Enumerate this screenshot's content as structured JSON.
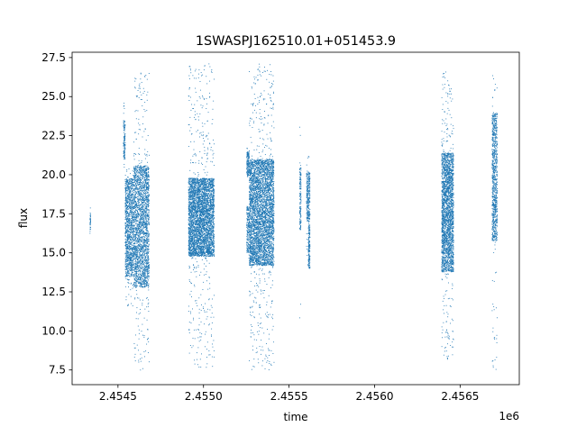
{
  "chart_data": {
    "type": "scatter",
    "title": "1SWASPJ162510.01+051453.9",
    "xlabel": "time",
    "ylabel": "flux",
    "x_offset_label": "1e6",
    "xlim": [
      2454232,
      2456846
    ],
    "ylim": [
      6.56,
      27.84
    ],
    "xticks": [
      {
        "value": 2454500,
        "label": "2.4545"
      },
      {
        "value": 2455000,
        "label": "2.4550"
      },
      {
        "value": 2455500,
        "label": "2.4555"
      },
      {
        "value": 2456000,
        "label": "2.4560"
      },
      {
        "value": 2456500,
        "label": "2.4565"
      }
    ],
    "yticks": [
      {
        "value": 7.5,
        "label": "7.5"
      },
      {
        "value": 10.0,
        "label": "10.0"
      },
      {
        "value": 12.5,
        "label": "12.5"
      },
      {
        "value": 15.0,
        "label": "15.0"
      },
      {
        "value": 17.5,
        "label": "17.5"
      },
      {
        "value": 20.0,
        "label": "20.0"
      },
      {
        "value": 22.5,
        "label": "22.5"
      },
      {
        "value": 25.0,
        "label": "25.0"
      },
      {
        "value": 27.5,
        "label": "27.5"
      }
    ],
    "grid": false,
    "legend": "none",
    "marker_color": "#1f77b4",
    "series": [
      {
        "segments": [
          {
            "x_start": 2454334,
            "x_end": 2454338,
            "y_min": 16.0,
            "y_max": 17.9,
            "core_min": 16.4,
            "core_max": 17.6,
            "count": 40
          },
          {
            "x_start": 2454530,
            "x_end": 2454540,
            "y_min": 20.5,
            "y_max": 24.8,
            "core_min": 21.0,
            "core_max": 23.5,
            "count": 120
          },
          {
            "x_start": 2454540,
            "x_end": 2454590,
            "y_min": 11.5,
            "y_max": 20.5,
            "core_min": 13.5,
            "core_max": 19.8,
            "count": 1200
          },
          {
            "x_start": 2454590,
            "x_end": 2454680,
            "y_min": 7.5,
            "y_max": 26.6,
            "core_min": 12.8,
            "core_max": 20.6,
            "count": 2400
          },
          {
            "x_start": 2454910,
            "x_end": 2455060,
            "y_min": 7.6,
            "y_max": 27.2,
            "core_min": 14.8,
            "core_max": 19.8,
            "count": 4200
          },
          {
            "x_start": 2455250,
            "x_end": 2455265,
            "y_min": 19.8,
            "y_max": 21.8,
            "core_min": 20.0,
            "core_max": 21.5,
            "count": 160
          },
          {
            "x_start": 2455250,
            "x_end": 2455265,
            "y_min": 14.5,
            "y_max": 18.5,
            "core_min": 15.0,
            "core_max": 18.0,
            "count": 160
          },
          {
            "x_start": 2455265,
            "x_end": 2455410,
            "y_min": 7.5,
            "y_max": 27.2,
            "core_min": 14.2,
            "core_max": 21.0,
            "count": 4400
          },
          {
            "x_start": 2455560,
            "x_end": 2455568,
            "y_min": 10.0,
            "y_max": 24.8,
            "core_min": 16.5,
            "core_max": 20.5,
            "count": 160
          },
          {
            "x_start": 2455600,
            "x_end": 2455620,
            "y_min": 13.8,
            "y_max": 21.5,
            "core_min": 17.0,
            "core_max": 20.2,
            "count": 300
          },
          {
            "x_start": 2455610,
            "x_end": 2455620,
            "y_min": 13.8,
            "y_max": 17.0,
            "core_min": 14.0,
            "core_max": 16.8,
            "count": 160
          },
          {
            "x_start": 2456390,
            "x_end": 2456460,
            "y_min": 8.2,
            "y_max": 26.7,
            "core_min": 13.8,
            "core_max": 21.4,
            "count": 2600
          },
          {
            "x_start": 2456685,
            "x_end": 2456715,
            "y_min": 7.5,
            "y_max": 26.4,
            "core_min": 15.8,
            "core_max": 24.0,
            "count": 900
          }
        ]
      }
    ]
  }
}
